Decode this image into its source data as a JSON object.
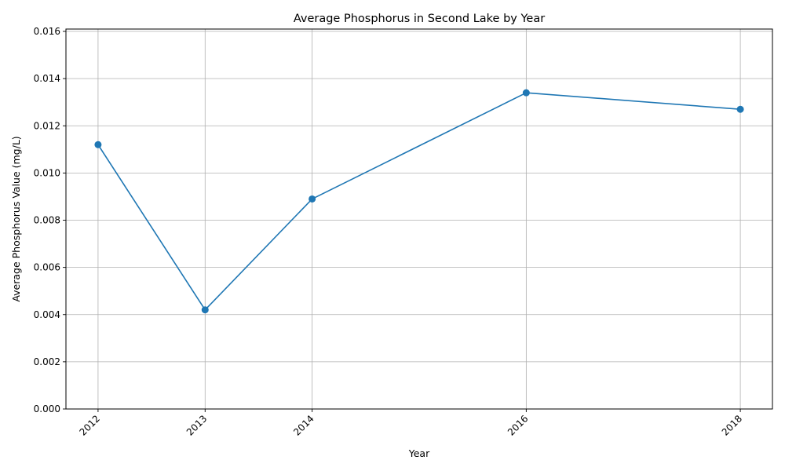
{
  "chart_data": {
    "type": "line",
    "title": "Average Phosphorus in Second Lake by Year",
    "xlabel": "Year",
    "ylabel": "Average Phosphorus Value (mg/L)",
    "x": [
      2012,
      2013,
      2014,
      2016,
      2018
    ],
    "x_tick_labels": [
      "2012",
      "2013",
      "2014",
      "2016",
      "2018"
    ],
    "series": [
      {
        "values": [
          0.0112,
          0.0042,
          0.0089,
          0.0134,
          0.0127
        ],
        "color": "#1f77b4",
        "marker": "circle"
      }
    ],
    "xlim": [
      2011.7,
      2018.3
    ],
    "ylim": [
      0,
      0.0161
    ],
    "y_ticks": [
      0.0,
      0.002,
      0.004,
      0.006,
      0.008,
      0.01,
      0.012,
      0.014,
      0.016
    ],
    "y_tick_labels": [
      "0.000",
      "0.002",
      "0.004",
      "0.006",
      "0.008",
      "0.010",
      "0.012",
      "0.014",
      "0.016"
    ],
    "grid": true,
    "x_tick_rotation_deg": 45
  }
}
